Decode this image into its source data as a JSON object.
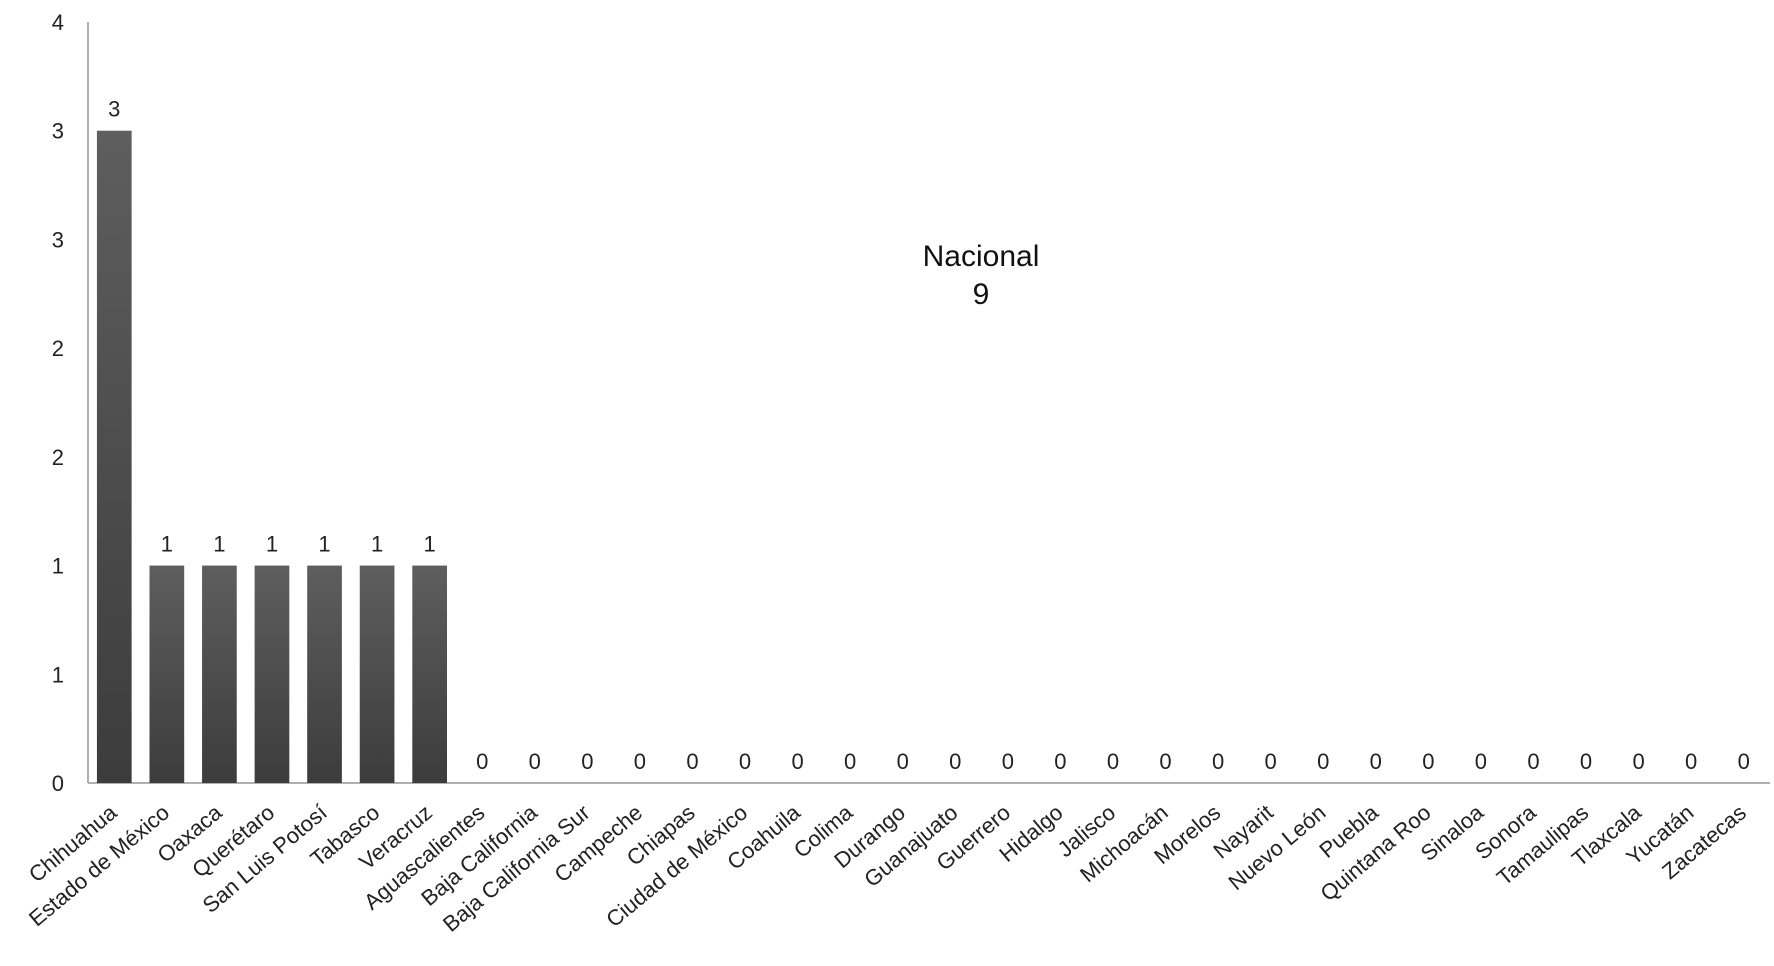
{
  "chart_data": {
    "type": "bar",
    "categories": [
      "Chihuahua",
      "Estado de México",
      "Oaxaca",
      "Querétaro",
      "San Luis Potosí",
      "Tabasco",
      "Veracruz",
      "Aguascalientes",
      "Baja California",
      "Baja California Sur",
      "Campeche",
      "Chiapas",
      "Ciudad de México",
      "Coahuila",
      "Colima",
      "Durango",
      "Guanajuato",
      "Guerrero",
      "Hidalgo",
      "Jalisco",
      "Michoacán",
      "Morelos",
      "Nayarit",
      "Nuevo León",
      "Puebla",
      "Quintana Roo",
      "Sinaloa",
      "Sonora",
      "Tamaulipas",
      "Tlaxcala",
      "Yucatán",
      "Zacatecas"
    ],
    "values": [
      3,
      1,
      1,
      1,
      1,
      1,
      1,
      0,
      0,
      0,
      0,
      0,
      0,
      0,
      0,
      0,
      0,
      0,
      0,
      0,
      0,
      0,
      0,
      0,
      0,
      0,
      0,
      0,
      0,
      0,
      0,
      0
    ],
    "ylim": [
      0,
      3.5
    ],
    "y_ticks": [
      0,
      0.5,
      1,
      1.5,
      2,
      2.5,
      3,
      3.5
    ],
    "y_tick_labels": [
      "0",
      "1",
      "1",
      "2",
      "2",
      "3",
      "3",
      "4"
    ],
    "grid": false,
    "bar_color": "#4d4d4d",
    "annotation": {
      "line1": "Nacional",
      "line2": "9"
    }
  }
}
